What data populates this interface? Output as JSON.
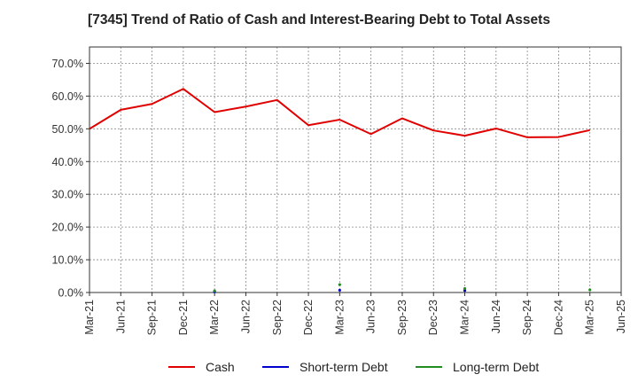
{
  "chart_data": {
    "type": "line",
    "title": "[7345]  Trend of Ratio of Cash and Interest-Bearing Debt to Total Assets",
    "xlabel": "",
    "ylabel": "",
    "y_ticks": [
      "0.0%",
      "10.0%",
      "20.0%",
      "30.0%",
      "40.0%",
      "50.0%",
      "60.0%",
      "70.0%"
    ],
    "ylim": [
      0,
      75
    ],
    "x_ticks": [
      "Mar-21",
      "Jun-21",
      "Sep-21",
      "Dec-21",
      "Mar-22",
      "Jun-22",
      "Sep-22",
      "Dec-22",
      "Mar-23",
      "Jun-23",
      "Sep-23",
      "Dec-23",
      "Mar-24",
      "Jun-24",
      "Sep-24",
      "Dec-24",
      "Mar-25",
      "Jun-25"
    ],
    "grid": true,
    "legend_position": "bottom",
    "series": [
      {
        "name": "Cash",
        "color": "#e00000",
        "style": "line",
        "x": [
          "Mar-21",
          "Jun-21",
          "Sep-21",
          "Dec-21",
          "Mar-22",
          "Jun-22",
          "Sep-22",
          "Dec-22",
          "Mar-23",
          "Jun-23",
          "Sep-23",
          "Dec-23",
          "Mar-24",
          "Jun-24",
          "Sep-24",
          "Dec-24",
          "Mar-25"
        ],
        "values": [
          50.0,
          55.8,
          57.6,
          62.2,
          55.1,
          56.8,
          58.8,
          51.1,
          52.8,
          48.4,
          53.2,
          49.5,
          47.9,
          50.1,
          47.4,
          47.5,
          49.6
        ]
      },
      {
        "name": "Short-term Debt",
        "color": "#0000cc",
        "style": "points",
        "x": [
          "Mar-22",
          "Mar-23",
          "Mar-24"
        ],
        "values": [
          0.2,
          0.7,
          0.6
        ]
      },
      {
        "name": "Long-term Debt",
        "color": "#228b22",
        "style": "points",
        "x": [
          "Mar-22",
          "Mar-23",
          "Mar-24",
          "Mar-25"
        ],
        "values": [
          0.5,
          2.4,
          1.2,
          0.8
        ]
      }
    ]
  }
}
